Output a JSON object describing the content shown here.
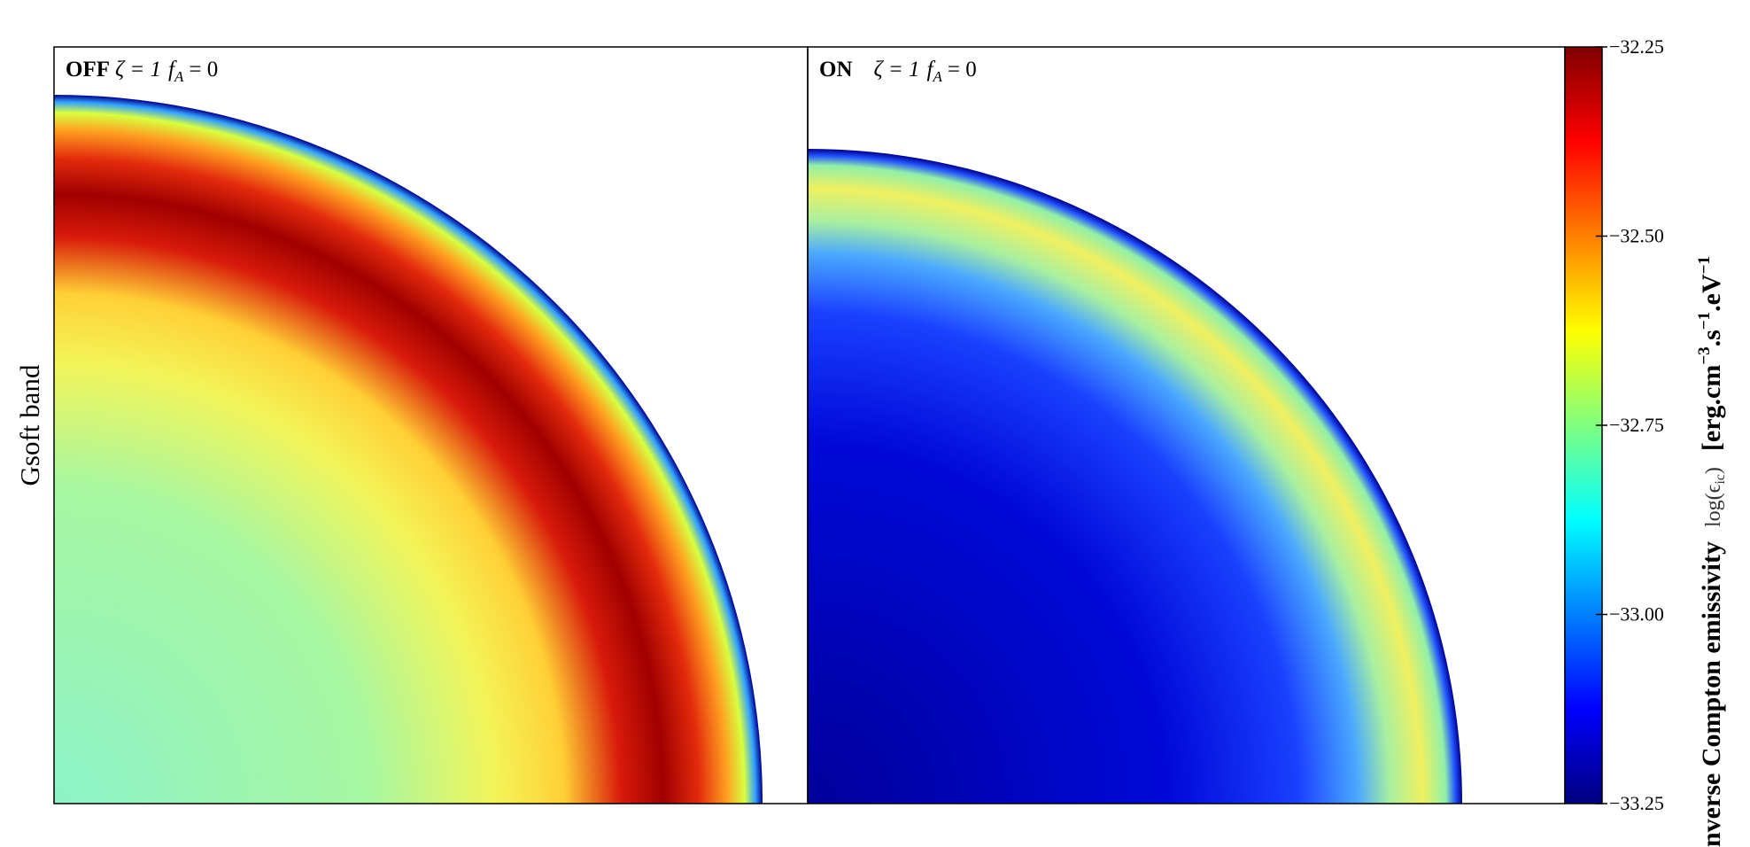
{
  "chart_data": {
    "type": "heatmap",
    "colormap": "jet",
    "ylabel": "Gsoft band",
    "panels": [
      {
        "label": "OFF",
        "zeta": "ζ = 1",
        "f": "f",
        "sub": "A",
        "fval": "= 0"
      },
      {
        "label": "ON",
        "zeta": "ζ = 1",
        "f": "f",
        "sub": "A",
        "fval": "= 0"
      }
    ],
    "colorbar": {
      "label": "nverse Compton emissivity",
      "log_label": "log(ϵ",
      "log_sub": "ic",
      "log_end": ")",
      "units": [
        "[erg.cm",
        "−3",
        ".s",
        "−1",
        ".eV",
        "−1"
      ],
      "ylim": [
        -33.25,
        -32.25
      ],
      "yticks": [
        {
          "value": -33.25,
          "label": "−33.25"
        },
        {
          "value": -33.0,
          "label": "−33.00"
        },
        {
          "value": -32.75,
          "label": "−32.75"
        },
        {
          "value": -32.5,
          "label": "−32.50"
        },
        {
          "value": -32.25,
          "label": "−32.25"
        }
      ]
    }
  }
}
